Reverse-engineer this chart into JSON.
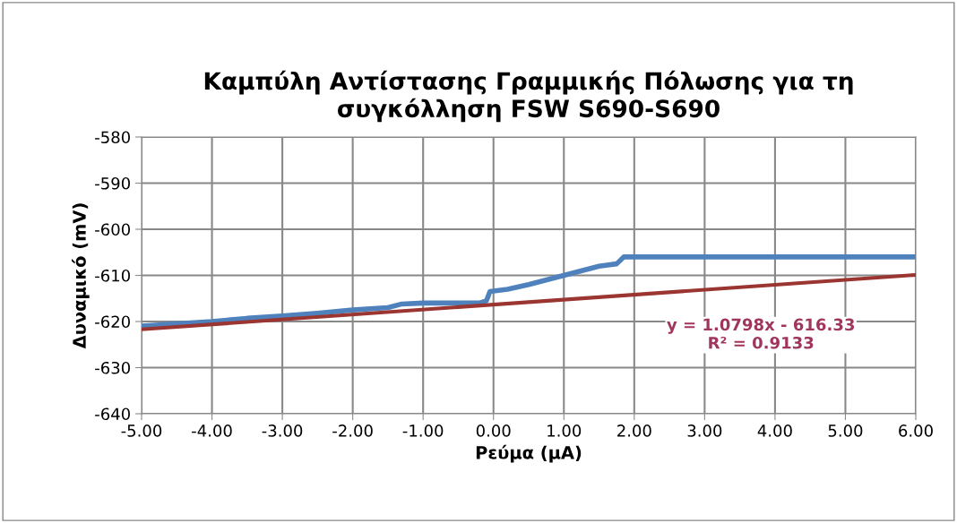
{
  "chart_data": {
    "type": "line",
    "title": "Καμπύλη Αντίστασης Γραμμικής Πόλωσης για τη\nσυγκόλληση FSW S690-S690",
    "xlabel": "Ρεύμα (μA)",
    "ylabel": "Δυναμικό (mV)",
    "series": [
      {
        "color": "#4f81bd",
        "x": [
          -5,
          -4.5,
          -4,
          -3.5,
          -3,
          -2.5,
          -2,
          -1.5,
          -1.3,
          -1,
          -0.5,
          -0.2,
          -0.1,
          -0.05,
          0.2,
          0.5,
          1.0,
          1.5,
          1.75,
          1.85,
          6
        ],
        "values": [
          -621,
          -620.5,
          -620,
          -619.3,
          -618.8,
          -618.2,
          -617.5,
          -617,
          -616.2,
          -616,
          -616,
          -616,
          -615.5,
          -613.5,
          -613,
          -612,
          -610,
          -608,
          -607.5,
          -606,
          -606
        ]
      },
      {
        "color": "#9b3531",
        "x": [
          -5,
          6
        ],
        "values": [
          -621.7,
          -609.9
        ]
      }
    ],
    "xlim": [
      -5,
      6
    ],
    "xticks": [
      {
        "value": -5,
        "label": "-5.00"
      },
      {
        "value": -4,
        "label": "-4.00"
      },
      {
        "value": -3,
        "label": "-3.00"
      },
      {
        "value": -2,
        "label": "-2.00"
      },
      {
        "value": -1,
        "label": "-1.00"
      },
      {
        "value": 0,
        "label": "0.00"
      },
      {
        "value": 1,
        "label": "1.00"
      },
      {
        "value": 2,
        "label": "2.00"
      },
      {
        "value": 3,
        "label": "3.00"
      },
      {
        "value": 4,
        "label": "4.00"
      },
      {
        "value": 5,
        "label": "5.00"
      },
      {
        "value": 6,
        "label": "6.00"
      }
    ],
    "ylim": [
      -640,
      -580
    ],
    "yticks": [
      -640,
      -630,
      -620,
      -610,
      -600,
      -590,
      -580
    ],
    "grid": true,
    "annotations": [
      "y = 1.0798x - 616.33\nR² = 0.9133"
    ]
  }
}
